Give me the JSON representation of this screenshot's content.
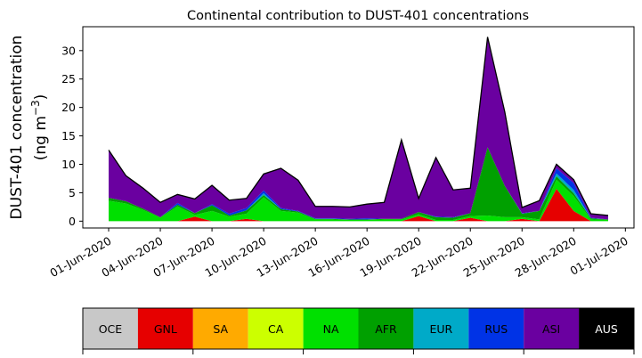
{
  "chart_data": {
    "type": "area",
    "title": "Continental contribution to DUST-401 concentrations",
    "ylabel_line1": "DUST-401 concentration",
    "ylabel_line2": "(ng m",
    "ylabel_sup": "−3",
    "ylabel_close": ")",
    "xlabel": "",
    "ylim": [
      -1.2,
      34.2
    ],
    "yticks": [
      0,
      5,
      10,
      15,
      20,
      25,
      30
    ],
    "x_start": "2020-06-01",
    "x": [
      "2020-06-01",
      "2020-06-02",
      "2020-06-03",
      "2020-06-04",
      "2020-06-05",
      "2020-06-06",
      "2020-06-07",
      "2020-06-08",
      "2020-06-09",
      "2020-06-10",
      "2020-06-11",
      "2020-06-12",
      "2020-06-13",
      "2020-06-14",
      "2020-06-15",
      "2020-06-16",
      "2020-06-17",
      "2020-06-18",
      "2020-06-19",
      "2020-06-20",
      "2020-06-21",
      "2020-06-22",
      "2020-06-23",
      "2020-06-24",
      "2020-06-25",
      "2020-06-26",
      "2020-06-27",
      "2020-06-28",
      "2020-06-29",
      "2020-06-30"
    ],
    "xticks": [
      {
        "date": "2020-06-01",
        "label": "01-Jun-2020"
      },
      {
        "date": "2020-06-04",
        "label": "04-Jun-2020"
      },
      {
        "date": "2020-06-07",
        "label": "07-Jun-2020"
      },
      {
        "date": "2020-06-10",
        "label": "10-Jun-2020"
      },
      {
        "date": "2020-06-13",
        "label": "13-Jun-2020"
      },
      {
        "date": "2020-06-16",
        "label": "16-Jun-2020"
      },
      {
        "date": "2020-06-19",
        "label": "19-Jun-2020"
      },
      {
        "date": "2020-06-22",
        "label": "22-Jun-2020"
      },
      {
        "date": "2020-06-25",
        "label": "25-Jun-2020"
      },
      {
        "date": "2020-06-28",
        "label": "28-Jun-2020"
      },
      {
        "date": "2020-07-01",
        "label": "01-Jul-2020"
      }
    ],
    "x_range": [
      "2020-05-30T12:00",
      "2020-07-01T12:00"
    ],
    "total": [
      12.5,
      8.0,
      5.8,
      3.3,
      4.7,
      3.9,
      6.3,
      3.7,
      4.0,
      8.3,
      9.3,
      7.2,
      2.6,
      2.6,
      2.5,
      3.0,
      3.3,
      14.3,
      4.0,
      11.2,
      5.5,
      5.8,
      32.4,
      19.2,
      2.4,
      3.6,
      10.0,
      7.3,
      1.3,
      1.0
    ],
    "series": [
      {
        "name": "OCE",
        "color": "#c8c8c8",
        "values": [
          0,
          0,
          0,
          0,
          0,
          0,
          0,
          0,
          0,
          0,
          0,
          0,
          0,
          0,
          0,
          0,
          0,
          0,
          0,
          0,
          0,
          0,
          0,
          0,
          0,
          0,
          0,
          0,
          0,
          0
        ]
      },
      {
        "name": "GNL",
        "color": "#e60000",
        "values": [
          0,
          0,
          0,
          0,
          0,
          0.8,
          0,
          0,
          0.4,
          0,
          0,
          0,
          0,
          0,
          0,
          0,
          0,
          0,
          0.9,
          0,
          0,
          0.6,
          0,
          0,
          0.4,
          0,
          5.7,
          1.8,
          0,
          0
        ]
      },
      {
        "name": "SA",
        "color": "#ffaa00",
        "values": [
          0,
          0,
          0,
          0,
          0,
          0,
          0,
          0,
          0,
          0,
          0,
          0,
          0,
          0,
          0,
          0,
          0,
          0,
          0,
          0,
          0,
          0,
          0,
          0,
          0,
          0,
          0,
          0,
          0,
          0
        ]
      },
      {
        "name": "CA",
        "color": "#ccff00",
        "values": [
          0,
          0,
          0,
          0,
          0,
          0,
          0,
          0,
          0,
          0,
          0,
          0,
          0,
          0,
          0,
          0,
          0,
          0,
          0,
          0,
          0,
          0,
          0,
          0,
          0,
          0,
          0,
          0,
          0,
          0
        ]
      },
      {
        "name": "NA",
        "color": "#00e000",
        "values": [
          3.6,
          3.1,
          2.0,
          0.6,
          2.6,
          0.3,
          1.8,
          0.8,
          0.9,
          4.2,
          1.8,
          1.5,
          0.3,
          0.3,
          0.2,
          0.2,
          0.3,
          0.3,
          0.3,
          0.2,
          0.2,
          0.3,
          1.0,
          0.7,
          0.3,
          0.3,
          1.6,
          2.6,
          0.3,
          0.2
        ]
      },
      {
        "name": "AFR",
        "color": "#00a000",
        "values": [
          0.5,
          0.4,
          0.2,
          0.1,
          0.3,
          0.3,
          1.0,
          0.2,
          0.6,
          0.4,
          0.3,
          0.2,
          0.1,
          0.1,
          0.1,
          0.1,
          0.1,
          0.1,
          0.4,
          0.5,
          0.4,
          0.5,
          12.0,
          5.5,
          0.6,
          1.5,
          0.6,
          0.5,
          0.2,
          0.1
        ]
      },
      {
        "name": "EUR",
        "color": "#00aac8",
        "values": [
          0,
          0,
          0,
          0,
          0,
          0,
          0,
          0,
          0,
          0.3,
          0,
          0,
          0,
          0,
          0,
          0,
          0,
          0,
          0,
          0,
          0,
          0,
          0,
          0,
          0,
          0,
          0.5,
          0.6,
          0,
          0
        ]
      },
      {
        "name": "RUS",
        "color": "#0033e6",
        "values": [
          0,
          0,
          0,
          0,
          0.3,
          0,
          0.2,
          0.3,
          0.4,
          0.5,
          0.2,
          0.1,
          0.1,
          0.1,
          0.1,
          0.2,
          0,
          0,
          0,
          0.1,
          0.1,
          0,
          0,
          0,
          0.1,
          0,
          0.9,
          1.2,
          0.1,
          0
        ]
      },
      {
        "name": "ASI",
        "color": "#6a00a0",
        "values": [
          8.4,
          4.5,
          3.6,
          2.6,
          1.5,
          2.5,
          3.3,
          2.4,
          1.7,
          2.9,
          7.0,
          5.4,
          2.1,
          2.1,
          2.1,
          2.5,
          2.9,
          13.9,
          2.4,
          10.4,
          4.8,
          4.4,
          19.4,
          13.0,
          1.0,
          1.8,
          0.7,
          0.6,
          0.7,
          0.7
        ]
      },
      {
        "name": "AUS",
        "color": "#000000",
        "values": [
          0,
          0,
          0,
          0,
          0,
          0,
          0,
          0,
          0,
          0,
          0,
          0,
          0,
          0,
          0,
          0,
          0,
          0,
          0,
          0,
          0,
          0,
          0,
          0,
          0,
          0,
          0,
          0,
          0,
          0
        ]
      }
    ],
    "legend_placement": "bottom colorbar",
    "grid": false
  },
  "colorbar": [
    {
      "label": "OCE",
      "color": "#c8c8c8",
      "text_color": "#000000"
    },
    {
      "label": "GNL",
      "color": "#e60000",
      "text_color": "#000000"
    },
    {
      "label": "SA",
      "color": "#ffaa00",
      "text_color": "#000000"
    },
    {
      "label": "CA",
      "color": "#ccff00",
      "text_color": "#000000"
    },
    {
      "label": "NA",
      "color": "#00e000",
      "text_color": "#000000"
    },
    {
      "label": "AFR",
      "color": "#00a000",
      "text_color": "#000000"
    },
    {
      "label": "EUR",
      "color": "#00aac8",
      "text_color": "#000000"
    },
    {
      "label": "RUS",
      "color": "#0033e6",
      "text_color": "#000000"
    },
    {
      "label": "ASI",
      "color": "#6a00a0",
      "text_color": "#000000"
    },
    {
      "label": "AUS",
      "color": "#000000",
      "text_color": "#ffffff"
    }
  ]
}
